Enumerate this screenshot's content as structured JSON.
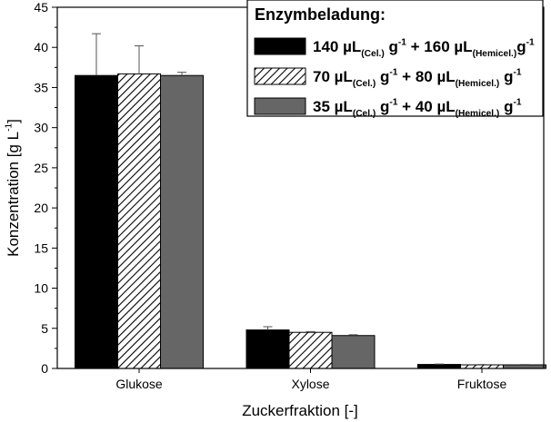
{
  "chart_data": {
    "type": "bar",
    "categories": [
      "Glukose",
      "Xylose",
      "Fruktose"
    ],
    "ylim": [
      0,
      45
    ],
    "yticks": [
      0,
      5,
      10,
      15,
      20,
      25,
      30,
      35,
      40,
      45
    ],
    "xlabel": "Zuckerfraktion [-]",
    "ylabel": [
      {
        "text": "Konzentration [g L"
      },
      {
        "text": "-1",
        "shift": "sup"
      },
      {
        "text": "]"
      }
    ],
    "legend_title": "Enzymbeladung:",
    "legend_loc": "upper right",
    "series": [
      {
        "name": [
          {
            "text": "140 µL"
          },
          {
            "text": "(Cel.)",
            "shift": "sub"
          },
          {
            "text": " g"
          },
          {
            "text": "-1",
            "shift": "sup"
          },
          {
            "text": " + 160 µL"
          },
          {
            "text": "(Hemicel.)",
            "shift": "sub"
          },
          {
            "text": "g"
          },
          {
            "text": "-1",
            "shift": "sup"
          }
        ],
        "color": "#000000",
        "values": [
          36.5,
          4.8,
          0.5
        ],
        "errors": [
          5.2,
          0.4,
          0.05
        ]
      },
      {
        "name": [
          {
            "text": "70 µL"
          },
          {
            "text": "(Cel.)",
            "shift": "sub"
          },
          {
            "text": " g"
          },
          {
            "text": "-1",
            "shift": "sup"
          },
          {
            "text": " + 80 µL"
          },
          {
            "text": "(Hemicel.)",
            "shift": "sub"
          },
          {
            "text": " g"
          },
          {
            "text": "-1",
            "shift": "sup"
          }
        ],
        "color": "#ffffff",
        "hatch": true,
        "values": [
          36.7,
          4.5,
          0.45
        ],
        "errors": [
          3.5,
          0.1,
          0.05
        ]
      },
      {
        "name": [
          {
            "text": "35 µL"
          },
          {
            "text": "(Cel.)",
            "shift": "sub"
          },
          {
            "text": " g"
          },
          {
            "text": "-1",
            "shift": "sup"
          },
          {
            "text": " + 40 µL"
          },
          {
            "text": "(Hemicel.)",
            "shift": "sub"
          },
          {
            "text": " g"
          },
          {
            "text": "-1",
            "shift": "sup"
          }
        ],
        "color": "#666666",
        "values": [
          36.5,
          4.1,
          0.45
        ],
        "errors": [
          0.4,
          0.1,
          0.05
        ]
      }
    ]
  }
}
